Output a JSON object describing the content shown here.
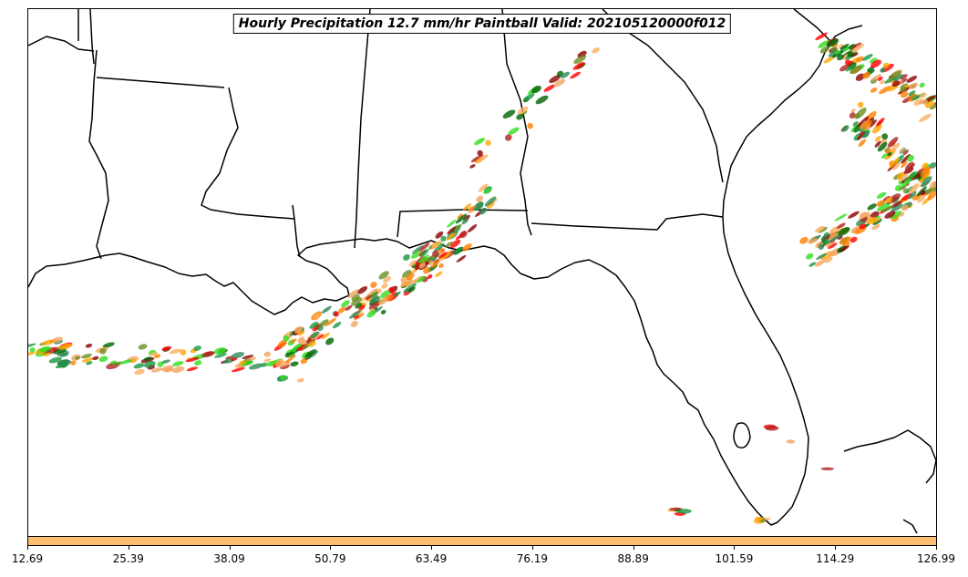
{
  "title": "Hourly Precipitation 12.7 mm/hr Paintball Valid: 202105120000f012",
  "colorbar": {
    "color": "#fdbf6f",
    "ticks": [
      "12.69",
      "25.39",
      "38.09",
      "50.79",
      "63.49",
      "76.19",
      "88.89",
      "101.59",
      "114.29",
      "126.99"
    ]
  },
  "member_colors": [
    "#1a9641",
    "#33dd22",
    "#ff0000",
    "#ff8000",
    "#fdae61",
    "#8b0000",
    "#006400",
    "#6b8e23",
    "#f4a460",
    "#2e8b57",
    "#b22222",
    "#ffa500"
  ],
  "map_background": "#ffffff",
  "border_color": "#000000"
}
